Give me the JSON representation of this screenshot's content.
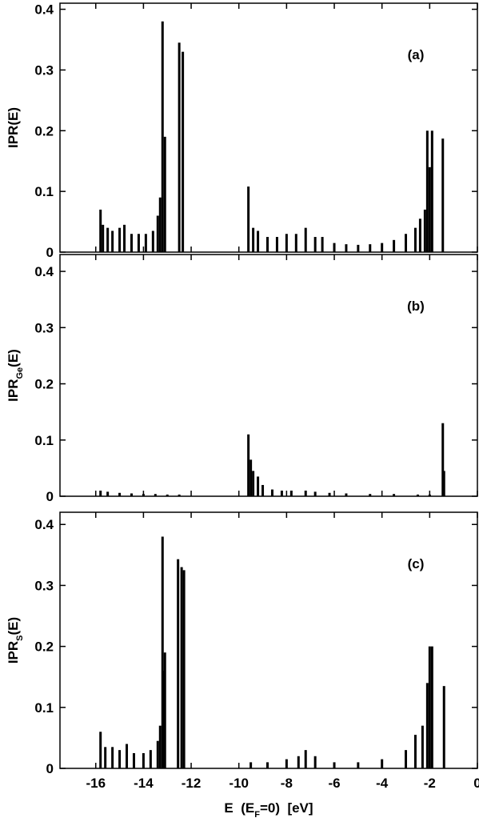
{
  "chart_data": [
    {
      "type": "bar",
      "ylabel": "IPR(E)",
      "annotation": "(a)",
      "color": "#000000",
      "xlim": [
        -17.5,
        0
      ],
      "ylim": [
        0,
        0.41
      ],
      "yticks": [
        0,
        0.1,
        0.2,
        0.3,
        0.4
      ],
      "x": [
        -15.8,
        -15.7,
        -15.5,
        -15.3,
        -15.0,
        -14.8,
        -14.5,
        -14.2,
        -13.9,
        -13.6,
        -13.4,
        -13.3,
        -13.2,
        -13.1,
        -12.5,
        -12.35,
        -9.6,
        -9.4,
        -9.2,
        -8.8,
        -8.4,
        -8.0,
        -7.6,
        -7.2,
        -6.8,
        -6.5,
        -6.0,
        -5.5,
        -5.0,
        -4.5,
        -4.0,
        -3.5,
        -3.0,
        -2.6,
        -2.4,
        -2.2,
        -2.1,
        -2.0,
        -1.9,
        -1.45
      ],
      "values": [
        0.07,
        0.045,
        0.04,
        0.035,
        0.04,
        0.045,
        0.03,
        0.03,
        0.03,
        0.035,
        0.06,
        0.09,
        0.38,
        0.19,
        0.345,
        0.33,
        0.108,
        0.04,
        0.035,
        0.025,
        0.025,
        0.03,
        0.03,
        0.04,
        0.025,
        0.025,
        0.015,
        0.013,
        0.012,
        0.013,
        0.015,
        0.02,
        0.03,
        0.04,
        0.055,
        0.07,
        0.2,
        0.14,
        0.2,
        0.187
      ]
    },
    {
      "type": "bar",
      "ylabel": "IPR",
      "ylabel_sub": "Ge",
      "ylabel_suffix": "(E)",
      "annotation": "(b)",
      "color": "#000000",
      "xlim": [
        -17.5,
        0
      ],
      "ylim": [
        0,
        0.43
      ],
      "yticks": [
        0,
        0.1,
        0.2,
        0.3,
        0.4
      ],
      "x": [
        -15.8,
        -15.5,
        -15.0,
        -14.5,
        -14.0,
        -13.5,
        -13.0,
        -12.5,
        -9.6,
        -9.5,
        -9.4,
        -9.2,
        -9.0,
        -8.6,
        -8.2,
        -7.8,
        -7.2,
        -6.8,
        -6.2,
        -5.5,
        -4.5,
        -3.5,
        -2.5,
        -2.0,
        -1.45,
        -1.4
      ],
      "values": [
        0.01,
        0.008,
        0.006,
        0.005,
        0.004,
        0.004,
        0.003,
        0.003,
        0.11,
        0.065,
        0.045,
        0.035,
        0.02,
        0.012,
        0.01,
        0.01,
        0.01,
        0.008,
        0.006,
        0.005,
        0.004,
        0.004,
        0.003,
        0.003,
        0.13,
        0.045
      ]
    },
    {
      "type": "bar",
      "ylabel": "IPR",
      "ylabel_sub": "S",
      "ylabel_suffix": "(E)",
      "annotation": "(c)",
      "color": "#000000",
      "xlabel": "E  (E",
      "xlabel_sub": "F",
      "xlabel_suffix": "=0)  [eV]",
      "xlim": [
        -17.5,
        0
      ],
      "ylim": [
        0,
        0.42
      ],
      "yticks": [
        0,
        0.1,
        0.2,
        0.3,
        0.4
      ],
      "xticks": [
        -16,
        -14,
        -12,
        -10,
        -8,
        -6,
        -4,
        -2,
        0
      ],
      "x": [
        -15.8,
        -15.6,
        -15.3,
        -15.0,
        -14.7,
        -14.4,
        -14.0,
        -13.7,
        -13.4,
        -13.3,
        -13.2,
        -13.15,
        -13.1,
        -12.55,
        -12.4,
        -12.3,
        -9.5,
        -8.8,
        -8.0,
        -7.5,
        -7.2,
        -6.8,
        -6.0,
        -5.0,
        -4.0,
        -3.0,
        -2.6,
        -2.3,
        -2.1,
        -2.0,
        -1.9,
        -1.4
      ],
      "values": [
        0.06,
        0.035,
        0.035,
        0.03,
        0.04,
        0.025,
        0.025,
        0.03,
        0.045,
        0.07,
        0.38,
        0.16,
        0.19,
        0.343,
        0.33,
        0.325,
        0.01,
        0.01,
        0.015,
        0.02,
        0.03,
        0.02,
        0.01,
        0.01,
        0.015,
        0.03,
        0.055,
        0.07,
        0.14,
        0.2,
        0.2,
        0.135
      ]
    }
  ]
}
